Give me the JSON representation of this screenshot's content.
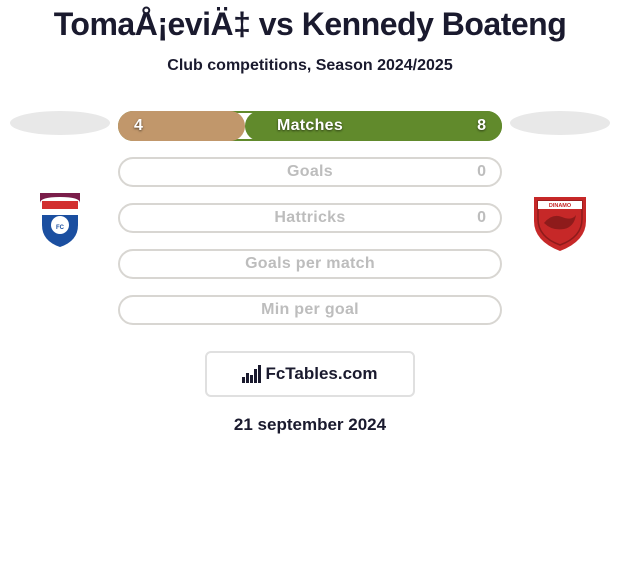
{
  "title": "TomaÅ¡eviÄ‡ vs Kennedy Boateng",
  "subtitle": "Club competitions, Season 2024/2025",
  "date": "21 september 2024",
  "brand": "FcTables.com",
  "colors": {
    "title_color": "#1a1a2e",
    "background": "#ffffff",
    "row_border_empty": "#d8d6d2",
    "pill_bg": "#e8e8e8"
  },
  "rows": [
    {
      "label": "Matches",
      "left": "4",
      "right": "8",
      "left_pct": 33,
      "right_pct": 67,
      "left_color": "#c1976b",
      "right_color": "#618a2c",
      "border_color": "#618a2c"
    },
    {
      "label": "Goals",
      "left": "",
      "right": "0",
      "left_pct": 0,
      "right_pct": 0,
      "left_color": "#c1976b",
      "right_color": "#618a2c",
      "border_color": "#d8d6d2"
    },
    {
      "label": "Hattricks",
      "left": "",
      "right": "0",
      "left_pct": 0,
      "right_pct": 0,
      "left_color": "#c1976b",
      "right_color": "#618a2c",
      "border_color": "#d8d6d2"
    },
    {
      "label": "Goals per match",
      "left": "",
      "right": "",
      "left_pct": 0,
      "right_pct": 0,
      "left_color": "#c1976b",
      "right_color": "#618a2c",
      "border_color": "#d8d6d2"
    },
    {
      "label": "Min per goal",
      "left": "",
      "right": "",
      "left_pct": 0,
      "right_pct": 0,
      "left_color": "#c1976b",
      "right_color": "#618a2c",
      "border_color": "#d8d6d2"
    }
  ],
  "left_team": {
    "crest_bg": "#ffffff",
    "crest_primary": "#1b4fa0",
    "crest_secondary": "#d22f2f",
    "crest_tertiary": "#7a1d4a"
  },
  "right_team": {
    "crest_bg": "#ffffff",
    "crest_primary": "#c62828",
    "crest_secondary": "#8e1b1b"
  }
}
